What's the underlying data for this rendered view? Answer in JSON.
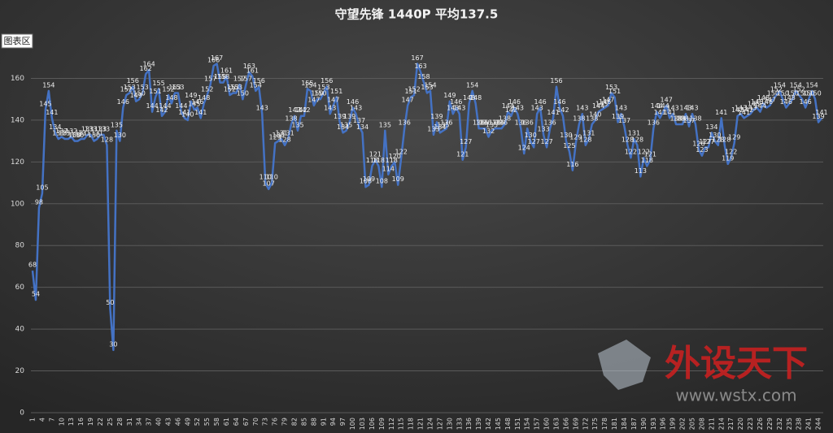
{
  "chart_data": {
    "type": "line",
    "title": "守望先锋 1440P  平均137.5",
    "tooltip": "图表区",
    "watermark": {
      "brand": "外设天下",
      "url": "www.wstx.com"
    },
    "categories": [
      "1",
      null,
      null,
      "4",
      null,
      null,
      "7",
      null,
      null,
      "10",
      null,
      null,
      "13",
      null,
      null,
      "16",
      null,
      null,
      "19",
      null,
      null,
      "22",
      null,
      null,
      "25",
      null,
      null,
      "28",
      null,
      null,
      "31",
      null,
      null,
      "34",
      null,
      null,
      "37",
      null,
      null,
      "40",
      null,
      null,
      "43",
      null,
      null,
      "46",
      null,
      null,
      "49",
      null,
      null,
      "52",
      null,
      null,
      "55",
      null,
      null,
      "58",
      null,
      null,
      "61",
      null,
      null,
      "64",
      null,
      null,
      "67",
      null,
      null,
      "70",
      null,
      null,
      "73",
      null,
      null,
      "76",
      null,
      null,
      "79",
      null,
      null,
      "82",
      null,
      null,
      "85",
      null,
      null,
      "88",
      null,
      null,
      "91",
      null,
      null,
      "94",
      null,
      null,
      "97",
      null,
      null,
      "100",
      null,
      null,
      "103",
      null,
      null,
      "106",
      null,
      null,
      "109",
      null,
      null,
      "112",
      null,
      null,
      "115",
      null,
      null,
      "118",
      null,
      null,
      "121",
      null,
      null,
      "124",
      null,
      null,
      "127",
      null,
      null,
      "130",
      null,
      null,
      "133",
      null,
      null,
      "136",
      null,
      null,
      "139",
      null,
      null,
      "142",
      null,
      null,
      "145",
      null,
      null,
      "148",
      null,
      null,
      "151",
      null,
      null,
      "154",
      null,
      null,
      "157",
      null,
      null,
      "160",
      null,
      null,
      "163",
      null,
      null,
      "166",
      null,
      null,
      "169",
      null,
      null,
      "172",
      null,
      null,
      "175",
      null,
      null,
      "178",
      null,
      null,
      "181",
      null,
      null,
      "184",
      null,
      null,
      "187",
      null,
      null,
      "190",
      null,
      null,
      "193",
      null,
      null,
      "196",
      null,
      null,
      "199",
      null,
      null,
      "202",
      null,
      null,
      "205",
      null,
      null,
      "208",
      null,
      null,
      "211",
      null,
      null,
      "214",
      null,
      null,
      "217",
      null,
      null,
      "220",
      null,
      null,
      "223",
      null,
      null,
      "226",
      null,
      null,
      "229",
      null,
      null,
      "232",
      null,
      null,
      "235",
      null,
      null,
      "238",
      null,
      null,
      "241",
      null,
      null,
      "244",
      null
    ],
    "series": [
      {
        "color": "#4472c4",
        "values": [
          68,
          54,
          98,
          105,
          145,
          154,
          141,
          134,
          131,
          132,
          131,
          131,
          132,
          130,
          130,
          131,
          131,
          133,
          133,
          130,
          131,
          133,
          133,
          128,
          50,
          30,
          135,
          130,
          146,
          152,
          153,
          156,
          149,
          150,
          153,
          162,
          164,
          144,
          151,
          155,
          142,
          144,
          152,
          148,
          153,
          153,
          144,
          141,
          140,
          149,
          145,
          146,
          141,
          148,
          152,
          157,
          166,
          167,
          158,
          158,
          161,
          152,
          153,
          153,
          157,
          150,
          157,
          163,
          161,
          154,
          156,
          143,
          110,
          107,
          110,
          129,
          130,
          131,
          128,
          131,
          138,
          142,
          135,
          142,
          142,
          155,
          154,
          147,
          150,
          150,
          153,
          156,
          143,
          147,
          151,
          139,
          134,
          135,
          139,
          146,
          143,
          137,
          134,
          108,
          109,
          118,
          121,
          118,
          108,
          135,
          114,
          118,
          120,
          109,
          122,
          136,
          147,
          151,
          152,
          167,
          163,
          158,
          153,
          154,
          133,
          139,
          134,
          135,
          136,
          149,
          143,
          146,
          143,
          121,
          127,
          148,
          154,
          148,
          136,
          136,
          136,
          132,
          135,
          136,
          136,
          136,
          138,
          144,
          142,
          146,
          143,
          136,
          124,
          136,
          130,
          127,
          143,
          146,
          133,
          127,
          136,
          141,
          156,
          146,
          142,
          130,
          125,
          116,
          129,
          138,
          143,
          128,
          131,
          138,
          140,
          144,
          145,
          146,
          147,
          153,
          151,
          139,
          143,
          137,
          128,
          122,
          131,
          128,
          113,
          122,
          118,
          121,
          136,
          144,
          141,
          144,
          147,
          141,
          143,
          138,
          138,
          138,
          143,
          137,
          143,
          138,
          126,
          123,
          127,
          127,
          134,
          130,
          128,
          141,
          128,
          119,
          122,
          129,
          142,
          143,
          141,
          142,
          143,
          145,
          146,
          144,
          148,
          146,
          147,
          150,
          152,
          154,
          150,
          146,
          148,
          150,
          154,
          152,
          150,
          146,
          150,
          154,
          150,
          139,
          141
        ]
      }
    ],
    "ylim": [
      0,
      180
    ],
    "yticks": [
      0,
      20,
      40,
      60,
      80,
      100,
      120,
      140,
      160
    ],
    "grid": true
  }
}
